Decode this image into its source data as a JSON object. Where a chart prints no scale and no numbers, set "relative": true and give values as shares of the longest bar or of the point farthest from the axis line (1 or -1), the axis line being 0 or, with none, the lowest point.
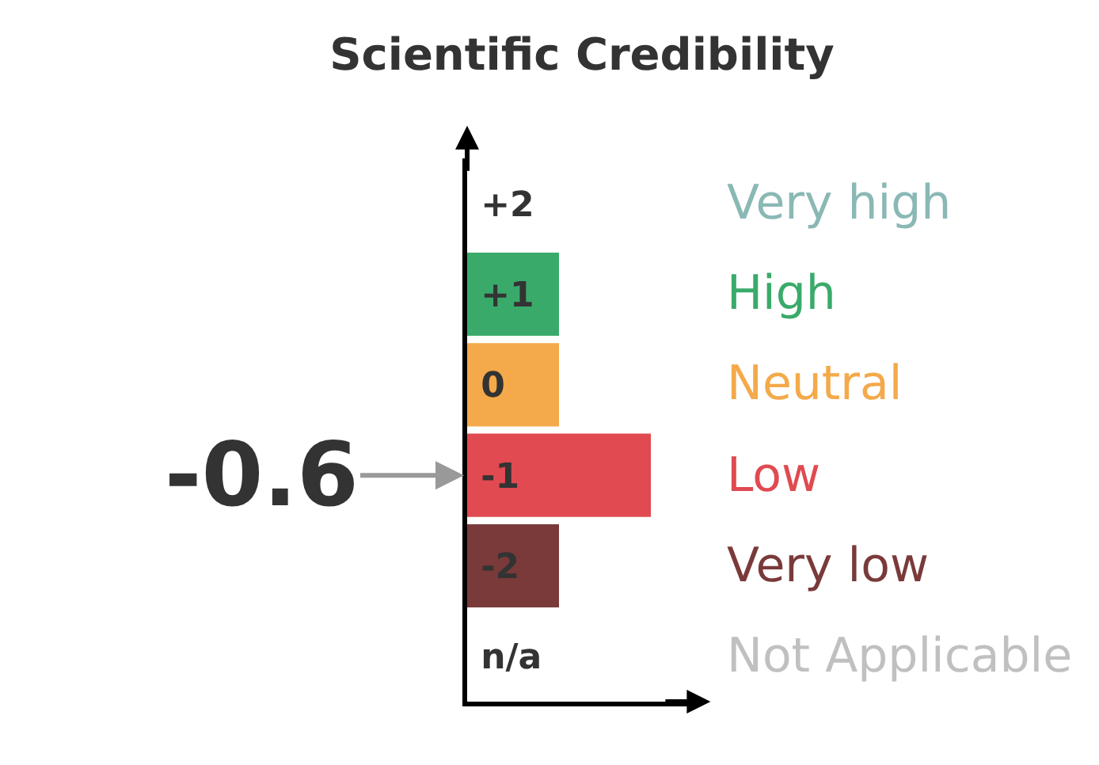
{
  "chart_data": {
    "type": "bar",
    "orientation": "horizontal",
    "relative": true,
    "title": "Scientific Credibility",
    "categories": [
      "+2",
      "+1",
      "0",
      "-1",
      "-2",
      "n/a"
    ],
    "values": [
      null,
      0.5,
      0.5,
      1,
      0.5,
      null
    ],
    "colors": [
      "#8ab8b5",
      "#3aaa6a",
      "#f4a94a",
      "#e04a50",
      "#7a3a3a",
      "#c0c0c0"
    ],
    "annotations": [
      "Very high",
      "High",
      "Neutral",
      "Low",
      "Very low",
      "Not Applicable",
      "-0.6"
    ],
    "legend": false
  }
}
